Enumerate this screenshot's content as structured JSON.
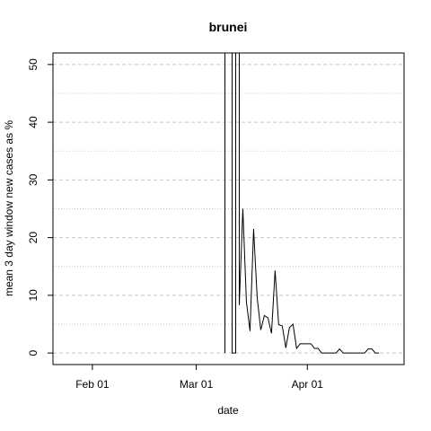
{
  "chart_data": {
    "type": "line",
    "title": "brunei",
    "xlabel": "date",
    "ylabel": "mean  3  day window new cases as %",
    "x_ticks": [
      "Feb 01",
      "Mar 01",
      "Apr 01"
    ],
    "y_ticks": [
      0,
      10,
      20,
      30,
      40,
      50
    ],
    "xlim": [
      "2020-01-21",
      "2020-04-28"
    ],
    "ylim": [
      -2,
      52
    ],
    "grid": "horizontal-dashed",
    "series": [
      {
        "values": [
          [
            "2020-03-09",
            0
          ],
          [
            "2020-03-09",
            52
          ],
          [
            "2020-03-11",
            52
          ],
          [
            "2020-03-11",
            0
          ],
          [
            "2020-03-12",
            0
          ],
          [
            "2020-03-12",
            52
          ],
          [
            "2020-03-13",
            52
          ],
          [
            "2020-03-13",
            8.3
          ],
          [
            "2020-03-14",
            25.0
          ],
          [
            "2020-03-15",
            8.8
          ],
          [
            "2020-03-16",
            3.8
          ],
          [
            "2020-03-17",
            21.5
          ],
          [
            "2020-03-18",
            9.6
          ],
          [
            "2020-03-19",
            4.0
          ],
          [
            "2020-03-20",
            6.5
          ],
          [
            "2020-03-21",
            6.1
          ],
          [
            "2020-03-22",
            3.4
          ],
          [
            "2020-03-23",
            14.3
          ],
          [
            "2020-03-24",
            4.9
          ],
          [
            "2020-03-25",
            4.7
          ],
          [
            "2020-03-26",
            0.9
          ],
          [
            "2020-03-27",
            4.4
          ],
          [
            "2020-03-28",
            5.0
          ],
          [
            "2020-03-29",
            0.8
          ],
          [
            "2020-03-30",
            1.6
          ],
          [
            "2020-03-31",
            1.6
          ],
          [
            "2020-04-01",
            1.6
          ],
          [
            "2020-04-02",
            1.6
          ],
          [
            "2020-04-03",
            0.8
          ],
          [
            "2020-04-04",
            0.8
          ],
          [
            "2020-04-05",
            0
          ],
          [
            "2020-04-06",
            0
          ],
          [
            "2020-04-07",
            0
          ],
          [
            "2020-04-08",
            0
          ],
          [
            "2020-04-09",
            0
          ],
          [
            "2020-04-10",
            0.7
          ],
          [
            "2020-04-11",
            0
          ],
          [
            "2020-04-12",
            0
          ],
          [
            "2020-04-13",
            0
          ],
          [
            "2020-04-14",
            0
          ],
          [
            "2020-04-15",
            0
          ],
          [
            "2020-04-16",
            0
          ],
          [
            "2020-04-17",
            0
          ],
          [
            "2020-04-18",
            0.7
          ],
          [
            "2020-04-19",
            0.7
          ],
          [
            "2020-04-20",
            0
          ],
          [
            "2020-04-21",
            0
          ]
        ]
      }
    ]
  }
}
